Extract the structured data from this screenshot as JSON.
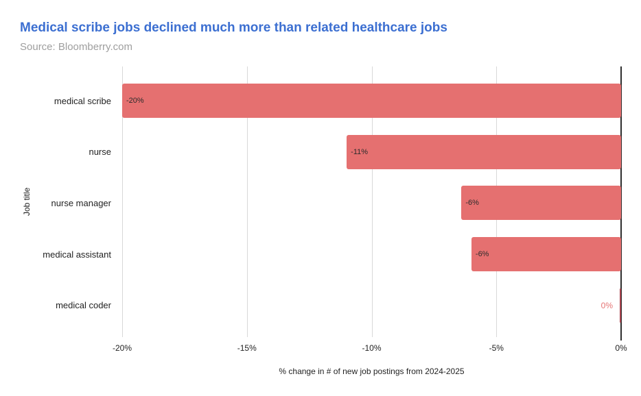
{
  "header": {
    "title": "Medical scribe jobs declined much more than related healthcare jobs",
    "source": "Source: Bloomberry.com"
  },
  "chart_data": {
    "type": "bar",
    "orientation": "horizontal",
    "title": "Medical scribe jobs declined much more than related healthcare jobs",
    "subtitle": "Source: Bloomberry.com",
    "categories": [
      "medical scribe",
      "nurse",
      "nurse manager",
      "medical assistant",
      "medical coder"
    ],
    "values": [
      -20,
      -11,
      -6.4,
      -6,
      0
    ],
    "labels": [
      "-20%",
      "-11%",
      "-6%",
      "-6%",
      "0%"
    ],
    "xlabel": "% change in # of new job postings from 2024-2025",
    "ylabel": "Job title",
    "xlim": [
      -20,
      0
    ],
    "xticks": [
      "-20%",
      "-15%",
      "-10%",
      "-5%",
      "0%"
    ],
    "grid": true,
    "legend": "none",
    "colors": {
      "bar": "#e57070",
      "zero_bar": "#a84550",
      "zero_value_label": "#e57373",
      "title": "#3c6fd1",
      "source": "#9e9e9e",
      "gridline": "#d8d8d8",
      "zero_axis": "#2d2d2d",
      "value_label": "#2b2b2b"
    }
  }
}
